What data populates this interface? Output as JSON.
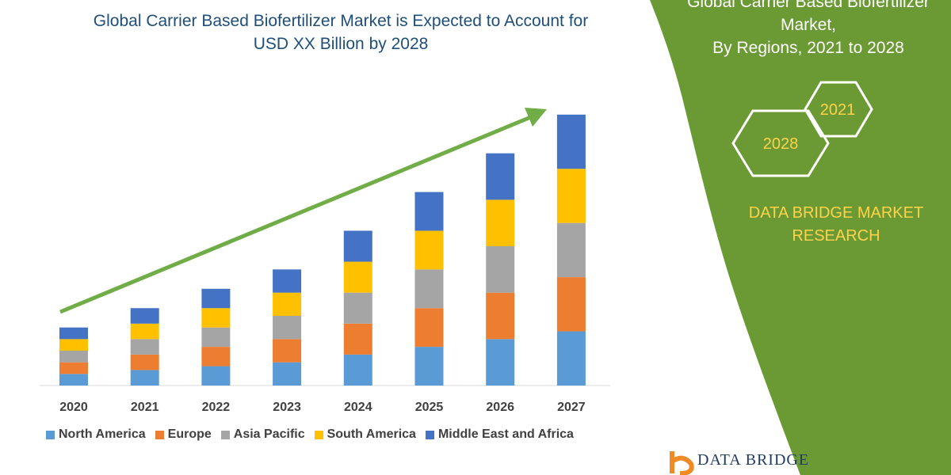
{
  "header": {
    "title_line1": "Global Carrier Based Biofertilizer Market is Expected to Account for",
    "title_line2": "USD XX Billion by 2028"
  },
  "side_panel": {
    "title_line1": "Global Carrier Based Biofertilizer",
    "title_line2": "Market,",
    "title_line3": "By Regions, 2021 to 2028",
    "badge_2021": "2021",
    "badge_2028": "2028",
    "brand_line1": "DATA BRIDGE MARKET",
    "brand_line2": "RESEARCH",
    "panel_color": "#6b9a35",
    "brand_color": "#ffd24a"
  },
  "footer_logo": {
    "text": "DATA BRIDGE"
  },
  "chart_data": {
    "type": "bar",
    "stacked": true,
    "categories": [
      "2020",
      "2021",
      "2022",
      "2023",
      "2024",
      "2025",
      "2026",
      "2027"
    ],
    "series": [
      {
        "name": "North America",
        "color": "#5b9bd5",
        "values": [
          1.5,
          2.0,
          2.5,
          3.0,
          4.0,
          5.0,
          6.0,
          7.0
        ]
      },
      {
        "name": "Europe",
        "color": "#ed7d31",
        "values": [
          1.5,
          2.0,
          2.5,
          3.0,
          4.0,
          5.0,
          6.0,
          7.0
        ]
      },
      {
        "name": "Asia Pacific",
        "color": "#a5a5a5",
        "values": [
          1.5,
          2.0,
          2.5,
          3.0,
          4.0,
          5.0,
          6.0,
          7.0
        ]
      },
      {
        "name": "South America",
        "color": "#ffc000",
        "values": [
          1.5,
          2.0,
          2.5,
          3.0,
          4.0,
          5.0,
          6.0,
          7.0
        ]
      },
      {
        "name": "Middle East and Africa",
        "color": "#4472c4",
        "values": [
          1.5,
          2.0,
          2.5,
          3.0,
          4.0,
          5.0,
          6.0,
          7.0
        ]
      }
    ],
    "ylim": [
      0,
      36
    ],
    "grid": false,
    "legend_position": "bottom",
    "trend_arrow_color": "#70ad47"
  }
}
